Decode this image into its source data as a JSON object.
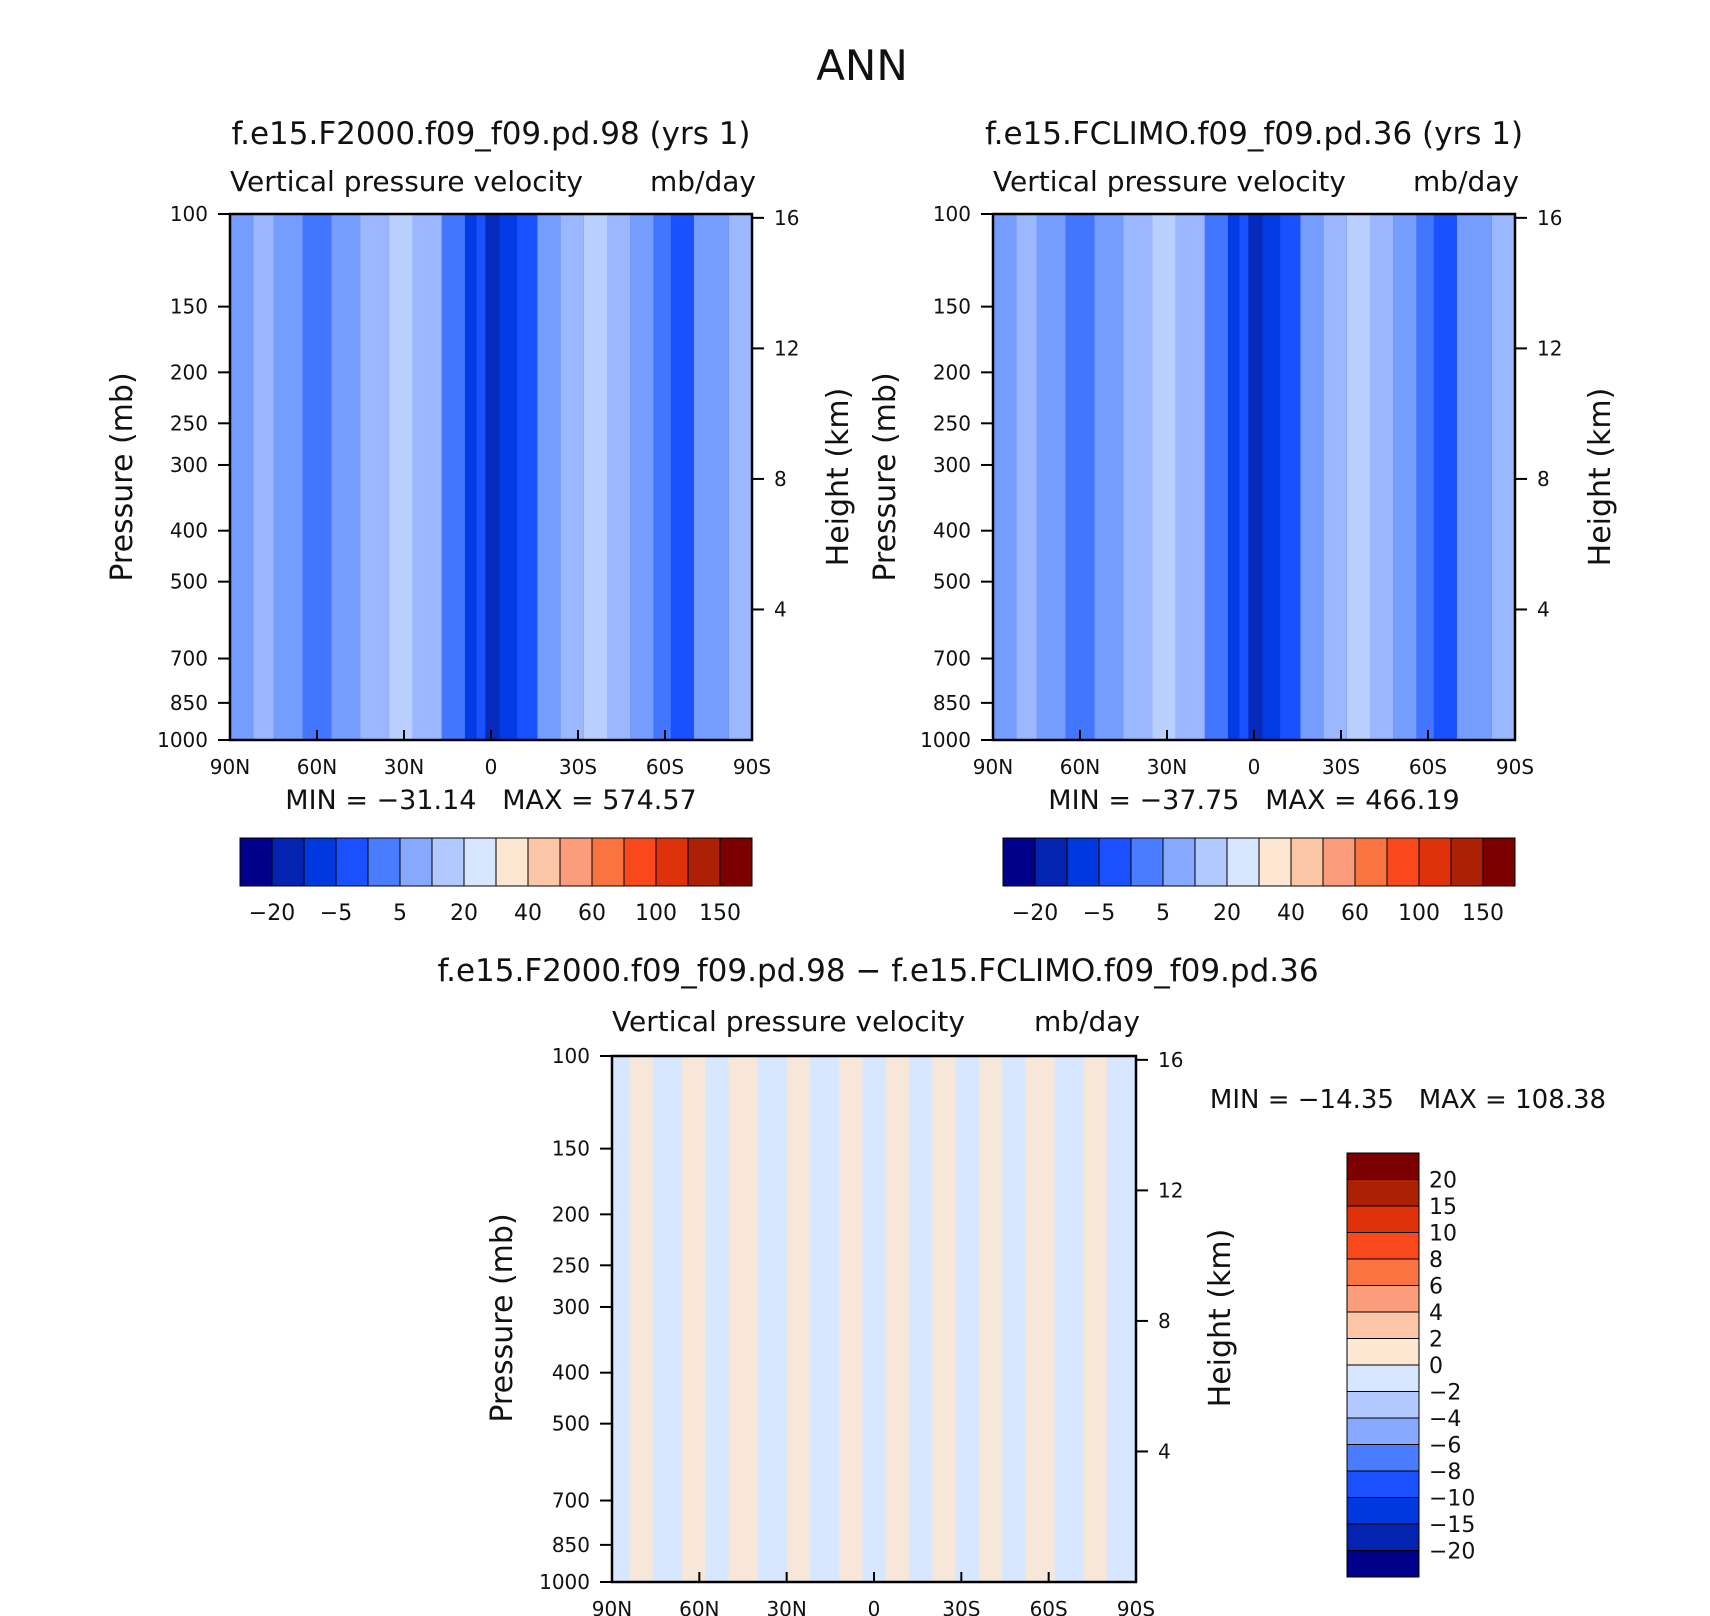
{
  "figure_title": "ANN",
  "chart_data": [
    {
      "type": "heatmap",
      "title": "f.e15.F2000.f09_f09.pd.98 (yrs 1)",
      "subtitle_left": "Vertical pressure velocity",
      "subtitle_right": "mb/day",
      "ylabel": "Pressure (mb)",
      "y2label": "Height (km)",
      "x_ticks": [
        "90N",
        "60N",
        "30N",
        "0",
        "30S",
        "60S",
        "90S"
      ],
      "y_ticks": [
        "100",
        "150",
        "200",
        "250",
        "300",
        "400",
        "500",
        "700",
        "850",
        "1000"
      ],
      "y_tick_values": [
        100,
        150,
        200,
        250,
        300,
        400,
        500,
        700,
        850,
        1000
      ],
      "y2_ticks": [
        "16",
        "12",
        "8",
        "4"
      ],
      "y2_tick_values": [
        16,
        12,
        8,
        4
      ],
      "xlim": [
        90,
        -90
      ],
      "ylim": [
        1000,
        100
      ],
      "y_scale": "log",
      "stats_text": "MIN = −31.14   MAX = 574.57",
      "min": -31.14,
      "max": 574.57,
      "colorbar": {
        "orientation": "horizontal",
        "labels": [
          "−20",
          "−5",
          "5",
          "20",
          "40",
          "60",
          "100",
          "150"
        ],
        "colors": [
          "#00008a",
          "#0323b0",
          "#0038e0",
          "#1a50ff",
          "#4a7cff",
          "#86a9ff",
          "#b1c9ff",
          "#d6e6ff",
          "#fde6d2",
          "#fcc6a6",
          "#fb9d7a",
          "#f97440",
          "#f8481c",
          "#e0320a",
          "#ac2006",
          "#7d0000"
        ]
      }
    },
    {
      "type": "heatmap",
      "title": "f.e15.FCLIMO.f09_f09.pd.36 (yrs 1)",
      "subtitle_left": "Vertical pressure velocity",
      "subtitle_right": "mb/day",
      "ylabel": "Pressure (mb)",
      "y2label": "Height (km)",
      "x_ticks": [
        "90N",
        "60N",
        "30N",
        "0",
        "30S",
        "60S",
        "90S"
      ],
      "y_ticks": [
        "100",
        "150",
        "200",
        "250",
        "300",
        "400",
        "500",
        "700",
        "850",
        "1000"
      ],
      "y_tick_values": [
        100,
        150,
        200,
        250,
        300,
        400,
        500,
        700,
        850,
        1000
      ],
      "y2_ticks": [
        "16",
        "12",
        "8",
        "4"
      ],
      "y2_tick_values": [
        16,
        12,
        8,
        4
      ],
      "xlim": [
        90,
        -90
      ],
      "ylim": [
        1000,
        100
      ],
      "y_scale": "log",
      "stats_text": "MIN = −37.75   MAX = 466.19",
      "min": -37.75,
      "max": 466.19,
      "colorbar": {
        "orientation": "horizontal",
        "labels": [
          "−20",
          "−5",
          "5",
          "20",
          "40",
          "60",
          "100",
          "150"
        ],
        "colors": [
          "#00008a",
          "#0323b0",
          "#0038e0",
          "#1a50ff",
          "#4a7cff",
          "#86a9ff",
          "#b1c9ff",
          "#d6e6ff",
          "#fde6d2",
          "#fcc6a6",
          "#fb9d7a",
          "#f97440",
          "#f8481c",
          "#e0320a",
          "#ac2006",
          "#7d0000"
        ]
      }
    },
    {
      "type": "heatmap",
      "title": "f.e15.F2000.f09_f09.pd.98 − f.e15.FCLIMO.f09_f09.pd.36",
      "subtitle_left": "Vertical pressure velocity",
      "subtitle_right": "mb/day",
      "ylabel": "Pressure (mb)",
      "y2label": "Height (km)",
      "x_ticks": [
        "90N",
        "60N",
        "30N",
        "0",
        "30S",
        "60S",
        "90S"
      ],
      "y_ticks": [
        "100",
        "150",
        "200",
        "250",
        "300",
        "400",
        "500",
        "700",
        "850",
        "1000"
      ],
      "y_tick_values": [
        100,
        150,
        200,
        250,
        300,
        400,
        500,
        700,
        850,
        1000
      ],
      "y2_ticks": [
        "16",
        "12",
        "8",
        "4"
      ],
      "y2_tick_values": [
        16,
        12,
        8,
        4
      ],
      "xlim": [
        90,
        -90
      ],
      "ylim": [
        1000,
        100
      ],
      "y_scale": "log",
      "stats_text": "MIN = −14.35   MAX = 108.38",
      "min": -14.35,
      "max": 108.38,
      "colorbar": {
        "orientation": "vertical",
        "labels": [
          "20",
          "15",
          "10",
          "8",
          "6",
          "4",
          "2",
          "0",
          "−2",
          "−4",
          "−6",
          "−8",
          "−10",
          "−15",
          "−20"
        ],
        "colors": [
          "#7d0000",
          "#ac2006",
          "#e0320a",
          "#f8481c",
          "#f97440",
          "#fb9d7a",
          "#fcc6a6",
          "#fde6d2",
          "#d6e6ff",
          "#b1c9ff",
          "#86a9ff",
          "#4a7cff",
          "#1a50ff",
          "#0038e0",
          "#0323b0",
          "#00008a"
        ]
      }
    }
  ]
}
